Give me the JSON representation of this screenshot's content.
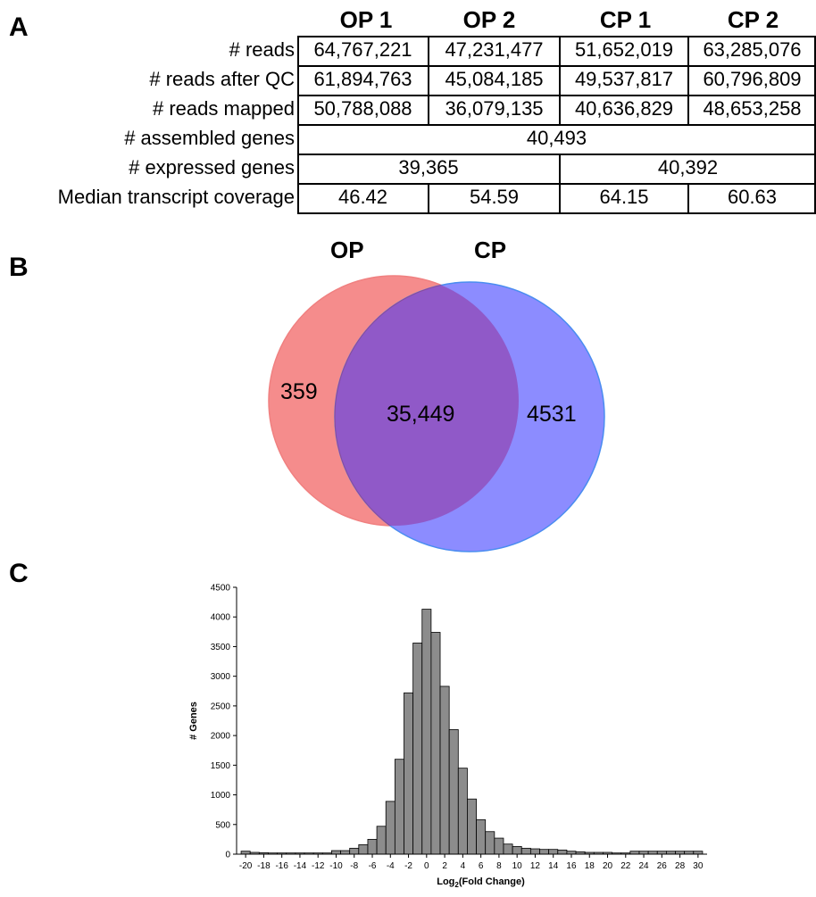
{
  "panels": {
    "a": "A",
    "b": "B",
    "c": "C"
  },
  "table": {
    "columns": [
      "OP 1",
      "OP 2",
      "CP 1",
      "CP 2"
    ],
    "rows": [
      {
        "label": "# reads",
        "cells": [
          "64,767,221",
          "47,231,477",
          "51,652,019",
          "63,285,076"
        ]
      },
      {
        "label": "# reads after QC",
        "cells": [
          "61,894,763",
          "45,084,185",
          "49,537,817",
          "60,796,809"
        ]
      },
      {
        "label": "# reads mapped",
        "cells": [
          "50,788,088",
          "36,079,135",
          "40,636,829",
          "48,653,258"
        ]
      },
      {
        "label": "# assembled genes",
        "merged_all": "40,493"
      },
      {
        "label": "# expressed genes",
        "merged_pairs": [
          "39,365",
          "40,392"
        ]
      },
      {
        "label": "Median transcript coverage",
        "cells": [
          "46.42",
          "54.59",
          "64.15",
          "60.63"
        ]
      }
    ]
  },
  "venn": {
    "left_label": "OP",
    "right_label": "CP",
    "left_only": "359",
    "overlap": "35,449",
    "right_only": "4531",
    "left_color": "#f58c8c",
    "right_color": "#8c8cff",
    "overlap_color": "#9059c8",
    "right_edge_color": "#4a8df0",
    "left_edge_color": "#f08080"
  },
  "chart_data": {
    "type": "bar",
    "xlabel_base": "Log",
    "xlabel_sub": "2",
    "xlabel_rest": "(Fold Change)",
    "ylabel": "# Genes",
    "ylim": [
      0,
      4500
    ],
    "yticks": [
      0,
      500,
      1000,
      1500,
      2000,
      2500,
      3000,
      3500,
      4000,
      4500
    ],
    "xlim": [
      -21,
      31
    ],
    "xticks": [
      -20,
      -18,
      -16,
      -14,
      -12,
      -10,
      -8,
      -6,
      -4,
      -2,
      0,
      2,
      4,
      6,
      8,
      10,
      12,
      14,
      16,
      18,
      20,
      22,
      24,
      26,
      28,
      30
    ],
    "bin_width": 1,
    "bins": [
      -20,
      -19,
      -18,
      -17,
      -16,
      -15,
      -14,
      -13,
      -12,
      -11,
      -10,
      -9,
      -8,
      -7,
      -6,
      -5,
      -4,
      -3,
      -2,
      -1,
      0,
      1,
      2,
      3,
      4,
      5,
      6,
      7,
      8,
      9,
      10,
      11,
      12,
      13,
      14,
      15,
      16,
      17,
      18,
      19,
      20,
      21,
      22,
      23,
      24,
      25,
      26,
      27,
      28,
      29,
      30
    ],
    "values": [
      50,
      30,
      25,
      20,
      20,
      20,
      20,
      20,
      20,
      20,
      60,
      60,
      100,
      160,
      250,
      470,
      890,
      1600,
      2720,
      3560,
      4130,
      3740,
      2830,
      2100,
      1450,
      930,
      580,
      380,
      270,
      170,
      130,
      100,
      90,
      80,
      80,
      70,
      50,
      40,
      30,
      30,
      30,
      20,
      20,
      50,
      50,
      50,
      50,
      50,
      50,
      50,
      50
    ],
    "bar_color": "#8c8c8c",
    "bar_edge": "#000000"
  }
}
